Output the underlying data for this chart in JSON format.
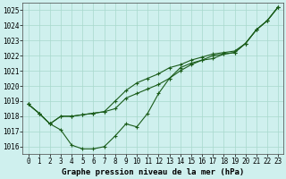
{
  "title": "Graphe pression niveau de la mer (hPa)",
  "background_color": "#cff0ee",
  "grid_color": "#a8d8cc",
  "line_color": "#1a5c1a",
  "x": [
    0,
    1,
    2,
    3,
    4,
    5,
    6,
    7,
    8,
    9,
    10,
    11,
    12,
    13,
    14,
    15,
    16,
    17,
    18,
    19,
    20,
    21,
    22,
    23
  ],
  "line1": [
    1018.8,
    1018.2,
    1017.5,
    1017.1,
    1016.1,
    1015.85,
    1015.85,
    1016.0,
    1016.7,
    1017.5,
    1017.3,
    1018.2,
    1019.5,
    1020.5,
    1021.2,
    1021.5,
    1021.7,
    1021.8,
    1022.1,
    1022.2,
    1022.8,
    1023.7,
    1024.3,
    1025.2
  ],
  "line2": [
    1018.8,
    1018.2,
    1017.5,
    1018.0,
    1018.0,
    1018.1,
    1018.2,
    1018.3,
    1018.5,
    1019.2,
    1019.5,
    1019.8,
    1020.1,
    1020.5,
    1021.0,
    1021.4,
    1021.7,
    1022.0,
    1022.1,
    1022.2,
    1022.8,
    1023.7,
    1024.3,
    1025.2
  ],
  "line3": [
    1018.8,
    1018.2,
    1017.5,
    1018.0,
    1018.0,
    1018.1,
    1018.2,
    1018.3,
    1019.0,
    1019.7,
    1020.2,
    1020.5,
    1020.8,
    1021.2,
    1021.4,
    1021.7,
    1021.9,
    1022.1,
    1022.2,
    1022.3,
    1022.8,
    1023.7,
    1024.3,
    1025.2
  ],
  "ylim": [
    1015.5,
    1025.5
  ],
  "yticks": [
    1016,
    1017,
    1018,
    1019,
    1020,
    1021,
    1022,
    1023,
    1024,
    1025
  ],
  "xlim": [
    -0.5,
    23.5
  ],
  "xticks": [
    0,
    1,
    2,
    3,
    4,
    5,
    6,
    7,
    8,
    9,
    10,
    11,
    12,
    13,
    14,
    15,
    16,
    17,
    18,
    19,
    20,
    21,
    22,
    23
  ],
  "marker": "+",
  "linewidth": 0.8,
  "markersize": 3,
  "tick_fontsize": 5.5,
  "xlabel_fontsize": 6.5
}
